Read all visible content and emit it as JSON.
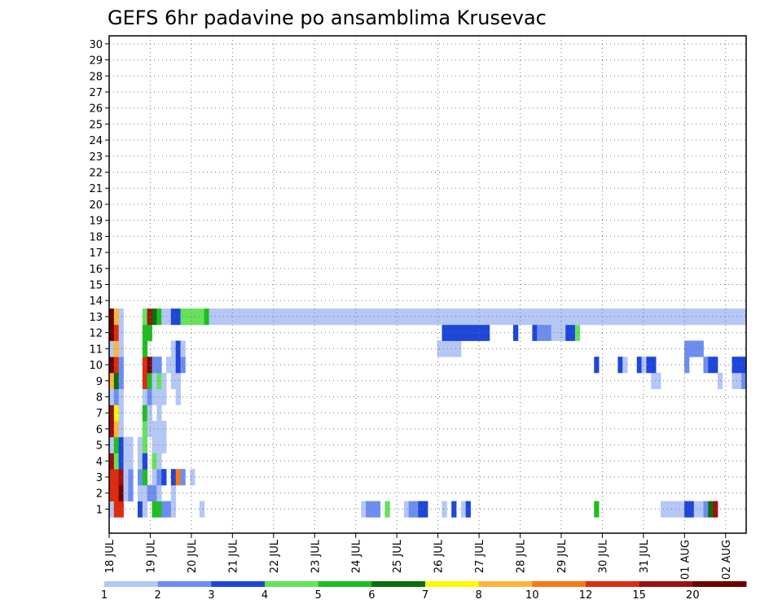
{
  "chart_data": {
    "type": "heatmap",
    "title": "GEFS 6hr padavine po ansamblima Krusevac",
    "xlabel": "",
    "ylabel": "",
    "x_tick_labels": [
      "18 JUL",
      "19 JUL",
      "20 JUL",
      "21 JUL",
      "22 JUL",
      "23 JUL",
      "24 JUL",
      "25 JUL",
      "26 JUL",
      "27 JUL",
      "28 JUL",
      "29 JUL",
      "30 JUL",
      "31 JUL",
      "01 AUG",
      "02 AUG"
    ],
    "y_tick_labels": [
      "1",
      "2",
      "3",
      "4",
      "5",
      "6",
      "7",
      "8",
      "9",
      "10",
      "11",
      "12",
      "13",
      "14",
      "15",
      "16",
      "17",
      "18",
      "19",
      "20",
      "21",
      "22",
      "23",
      "24",
      "25",
      "26",
      "27",
      "28",
      "29",
      "30"
    ],
    "grid": true,
    "colorbar": {
      "levels": [
        "1",
        "2",
        "3",
        "4",
        "5",
        "6",
        "7",
        "8",
        "10",
        "12",
        "15",
        "20"
      ],
      "colors": [
        "#b4c7f5",
        "#6d8ef0",
        "#1e46d8",
        "#64e25a",
        "#1ebe1e",
        "#0a6e0a",
        "#fffa00",
        "#ffb43c",
        "#fa7814",
        "#dc2d0f",
        "#a00f0f",
        "#6e0000"
      ]
    },
    "cells": [
      [
        0,
        1,
        1
      ],
      [
        1,
        1,
        10
      ],
      [
        2,
        1,
        10
      ],
      [
        6,
        1,
        3
      ],
      [
        7,
        1,
        1
      ],
      [
        9,
        1,
        5
      ],
      [
        10,
        1,
        5
      ],
      [
        11,
        1,
        2
      ],
      [
        12,
        1,
        2
      ],
      [
        13,
        1,
        1
      ],
      [
        19,
        1,
        1
      ],
      [
        53,
        1,
        1
      ],
      [
        54,
        1,
        2
      ],
      [
        55,
        1,
        2
      ],
      [
        56,
        1,
        2
      ],
      [
        58,
        1,
        4
      ],
      [
        62,
        1,
        1
      ],
      [
        63,
        1,
        2
      ],
      [
        64,
        1,
        2
      ],
      [
        65,
        1,
        3
      ],
      [
        66,
        1,
        3
      ],
      [
        70,
        1,
        1
      ],
      [
        72,
        1,
        3
      ],
      [
        74,
        1,
        1
      ],
      [
        75,
        1,
        3
      ],
      [
        102,
        1,
        5
      ],
      [
        116,
        1,
        1
      ],
      [
        117,
        1,
        1
      ],
      [
        118,
        1,
        1
      ],
      [
        119,
        1,
        1
      ],
      [
        120,
        1,
        1
      ],
      [
        121,
        1,
        3
      ],
      [
        122,
        1,
        3
      ],
      [
        123,
        1,
        1
      ],
      [
        124,
        1,
        1
      ],
      [
        125,
        1,
        2
      ],
      [
        126,
        1,
        6
      ],
      [
        127,
        1,
        11
      ],
      [
        0,
        2,
        10
      ],
      [
        1,
        2,
        10
      ],
      [
        2,
        2,
        12
      ],
      [
        3,
        2,
        1
      ],
      [
        4,
        2,
        2
      ],
      [
        6,
        2,
        1
      ],
      [
        7,
        2,
        1
      ],
      [
        8,
        2,
        2
      ],
      [
        9,
        2,
        2
      ],
      [
        10,
        2,
        1
      ],
      [
        13,
        2,
        1
      ],
      [
        0,
        3,
        10
      ],
      [
        1,
        3,
        10
      ],
      [
        2,
        3,
        11
      ],
      [
        3,
        3,
        1
      ],
      [
        4,
        3,
        2
      ],
      [
        6,
        3,
        2
      ],
      [
        7,
        3,
        5
      ],
      [
        9,
        3,
        1
      ],
      [
        10,
        3,
        2
      ],
      [
        11,
        3,
        3
      ],
      [
        13,
        3,
        3
      ],
      [
        14,
        3,
        9
      ],
      [
        15,
        3,
        2
      ],
      [
        17,
        3,
        1
      ],
      [
        0,
        4,
        11
      ],
      [
        1,
        4,
        4
      ],
      [
        2,
        4,
        3
      ],
      [
        3,
        4,
        1
      ],
      [
        4,
        4,
        1
      ],
      [
        6,
        4,
        1
      ],
      [
        7,
        4,
        3
      ],
      [
        9,
        4,
        4
      ],
      [
        10,
        4,
        1
      ],
      [
        0,
        5,
        1
      ],
      [
        1,
        5,
        5
      ],
      [
        2,
        5,
        3
      ],
      [
        3,
        5,
        1
      ],
      [
        4,
        5,
        1
      ],
      [
        6,
        5,
        1
      ],
      [
        7,
        5,
        4
      ],
      [
        9,
        5,
        1
      ],
      [
        10,
        5,
        1
      ],
      [
        11,
        5,
        1
      ],
      [
        0,
        6,
        11
      ],
      [
        1,
        6,
        8
      ],
      [
        2,
        6,
        1
      ],
      [
        7,
        6,
        4
      ],
      [
        8,
        6,
        1
      ],
      [
        9,
        6,
        1
      ],
      [
        10,
        6,
        1
      ],
      [
        11,
        6,
        1
      ],
      [
        0,
        7,
        11
      ],
      [
        1,
        7,
        7
      ],
      [
        2,
        7,
        1
      ],
      [
        7,
        7,
        5
      ],
      [
        8,
        7,
        1
      ],
      [
        10,
        7,
        1
      ],
      [
        0,
        8,
        1
      ],
      [
        1,
        8,
        2
      ],
      [
        2,
        8,
        1
      ],
      [
        7,
        8,
        1
      ],
      [
        8,
        8,
        2
      ],
      [
        9,
        8,
        1
      ],
      [
        10,
        8,
        1
      ],
      [
        11,
        8,
        1
      ],
      [
        14,
        8,
        1
      ],
      [
        0,
        9,
        8
      ],
      [
        1,
        9,
        6
      ],
      [
        2,
        9,
        2
      ],
      [
        7,
        9,
        10
      ],
      [
        8,
        9,
        5
      ],
      [
        9,
        9,
        1
      ],
      [
        10,
        9,
        4
      ],
      [
        11,
        9,
        1
      ],
      [
        13,
        9,
        1
      ],
      [
        14,
        9,
        1
      ],
      [
        114,
        9,
        1
      ],
      [
        115,
        9,
        1
      ],
      [
        128,
        9,
        1
      ],
      [
        131,
        9,
        1
      ],
      [
        132,
        9,
        1
      ],
      [
        133,
        9,
        2
      ],
      [
        0,
        10,
        12
      ],
      [
        1,
        10,
        10
      ],
      [
        2,
        10,
        2
      ],
      [
        7,
        10,
        10
      ],
      [
        8,
        10,
        12
      ],
      [
        9,
        10,
        2
      ],
      [
        10,
        10,
        2
      ],
      [
        12,
        10,
        1
      ],
      [
        13,
        10,
        1
      ],
      [
        14,
        10,
        3
      ],
      [
        15,
        10,
        2
      ],
      [
        102,
        10,
        3
      ],
      [
        107,
        10,
        3
      ],
      [
        108,
        10,
        1
      ],
      [
        111,
        10,
        3
      ],
      [
        112,
        10,
        1
      ],
      [
        113,
        10,
        3
      ],
      [
        114,
        10,
        3
      ],
      [
        121,
        10,
        2
      ],
      [
        125,
        10,
        2
      ],
      [
        126,
        10,
        3
      ],
      [
        127,
        10,
        3
      ],
      [
        131,
        10,
        3
      ],
      [
        132,
        10,
        3
      ],
      [
        133,
        10,
        3
      ],
      [
        0,
        11,
        1
      ],
      [
        1,
        11,
        8
      ],
      [
        2,
        11,
        1
      ],
      [
        7,
        11,
        5
      ],
      [
        13,
        11,
        1
      ],
      [
        14,
        11,
        3
      ],
      [
        15,
        11,
        1
      ],
      [
        69,
        11,
        1
      ],
      [
        70,
        11,
        1
      ],
      [
        71,
        11,
        1
      ],
      [
        72,
        11,
        1
      ],
      [
        73,
        11,
        1
      ],
      [
        121,
        11,
        2
      ],
      [
        122,
        11,
        2
      ],
      [
        123,
        11,
        2
      ],
      [
        124,
        11,
        2
      ],
      [
        0,
        12,
        12
      ],
      [
        1,
        12,
        10
      ],
      [
        2,
        12,
        1
      ],
      [
        7,
        12,
        5
      ],
      [
        8,
        12,
        5
      ],
      [
        70,
        12,
        3
      ],
      [
        71,
        12,
        3
      ],
      [
        72,
        12,
        3
      ],
      [
        73,
        12,
        3
      ],
      [
        74,
        12,
        3
      ],
      [
        75,
        12,
        3
      ],
      [
        76,
        12,
        3
      ],
      [
        77,
        12,
        3
      ],
      [
        78,
        12,
        3
      ],
      [
        79,
        12,
        3
      ],
      [
        85,
        12,
        3
      ],
      [
        89,
        12,
        3
      ],
      [
        90,
        12,
        2
      ],
      [
        91,
        12,
        2
      ],
      [
        92,
        12,
        2
      ],
      [
        93,
        12,
        1
      ],
      [
        94,
        12,
        1
      ],
      [
        95,
        12,
        1
      ],
      [
        96,
        12,
        3
      ],
      [
        97,
        12,
        3
      ],
      [
        98,
        12,
        4
      ],
      [
        0,
        13,
        12
      ],
      [
        1,
        13,
        8
      ],
      [
        2,
        13,
        1
      ],
      [
        7,
        13,
        4
      ],
      [
        8,
        13,
        11
      ],
      [
        9,
        13,
        6
      ],
      [
        10,
        13,
        5
      ],
      [
        11,
        13,
        1
      ],
      [
        12,
        13,
        1
      ],
      [
        13,
        13,
        3
      ],
      [
        14,
        13,
        3
      ],
      [
        15,
        13,
        4
      ],
      [
        16,
        13,
        4
      ],
      [
        17,
        13,
        4
      ],
      [
        18,
        13,
        4
      ],
      [
        19,
        13,
        4
      ],
      [
        20,
        13,
        5
      ],
      [
        21,
        13,
        1
      ],
      [
        22,
        13,
        1
      ],
      [
        23,
        13,
        1
      ],
      [
        24,
        13,
        1
      ],
      [
        25,
        13,
        1
      ],
      [
        26,
        13,
        1
      ],
      [
        27,
        13,
        1
      ],
      [
        28,
        13,
        1
      ],
      [
        29,
        13,
        1
      ],
      [
        30,
        13,
        1
      ],
      [
        31,
        13,
        1
      ],
      [
        32,
        13,
        1
      ],
      [
        33,
        13,
        1
      ],
      [
        34,
        13,
        1
      ],
      [
        35,
        13,
        1
      ],
      [
        36,
        13,
        1
      ],
      [
        37,
        13,
        1
      ],
      [
        38,
        13,
        1
      ],
      [
        39,
        13,
        1
      ],
      [
        40,
        13,
        1
      ],
      [
        41,
        13,
        1
      ],
      [
        42,
        13,
        1
      ],
      [
        43,
        13,
        1
      ],
      [
        44,
        13,
        1
      ],
      [
        45,
        13,
        1
      ],
      [
        46,
        13,
        1
      ],
      [
        47,
        13,
        1
      ],
      [
        48,
        13,
        1
      ],
      [
        49,
        13,
        1
      ],
      [
        50,
        13,
        1
      ],
      [
        51,
        13,
        1
      ],
      [
        52,
        13,
        1
      ],
      [
        53,
        13,
        1
      ],
      [
        54,
        13,
        1
      ],
      [
        55,
        13,
        1
      ],
      [
        56,
        13,
        1
      ],
      [
        57,
        13,
        1
      ],
      [
        58,
        13,
        1
      ],
      [
        59,
        13,
        1
      ],
      [
        60,
        13,
        1
      ],
      [
        61,
        13,
        1
      ],
      [
        62,
        13,
        1
      ],
      [
        63,
        13,
        1
      ],
      [
        64,
        13,
        1
      ],
      [
        65,
        13,
        1
      ],
      [
        66,
        13,
        1
      ],
      [
        67,
        13,
        1
      ],
      [
        68,
        13,
        1
      ],
      [
        69,
        13,
        1
      ],
      [
        70,
        13,
        1
      ],
      [
        71,
        13,
        1
      ],
      [
        72,
        13,
        1
      ],
      [
        73,
        13,
        1
      ],
      [
        74,
        13,
        1
      ],
      [
        75,
        13,
        1
      ],
      [
        76,
        13,
        1
      ],
      [
        77,
        13,
        1
      ],
      [
        78,
        13,
        1
      ],
      [
        79,
        13,
        1
      ],
      [
        80,
        13,
        1
      ],
      [
        81,
        13,
        1
      ],
      [
        82,
        13,
        1
      ],
      [
        83,
        13,
        1
      ],
      [
        84,
        13,
        1
      ],
      [
        85,
        13,
        1
      ],
      [
        86,
        13,
        1
      ],
      [
        87,
        13,
        1
      ],
      [
        88,
        13,
        1
      ],
      [
        89,
        13,
        1
      ],
      [
        90,
        13,
        1
      ],
      [
        91,
        13,
        1
      ],
      [
        92,
        13,
        1
      ],
      [
        93,
        13,
        1
      ],
      [
        94,
        13,
        1
      ],
      [
        95,
        13,
        1
      ],
      [
        96,
        13,
        1
      ],
      [
        97,
        13,
        1
      ],
      [
        98,
        13,
        1
      ],
      [
        99,
        13,
        1
      ],
      [
        100,
        13,
        1
      ],
      [
        101,
        13,
        1
      ],
      [
        102,
        13,
        1
      ],
      [
        103,
        13,
        1
      ],
      [
        104,
        13,
        1
      ],
      [
        105,
        13,
        1
      ],
      [
        106,
        13,
        1
      ],
      [
        107,
        13,
        1
      ],
      [
        108,
        13,
        1
      ],
      [
        109,
        13,
        1
      ],
      [
        110,
        13,
        1
      ],
      [
        111,
        13,
        1
      ],
      [
        112,
        13,
        1
      ],
      [
        113,
        13,
        1
      ],
      [
        114,
        13,
        1
      ],
      [
        115,
        13,
        1
      ],
      [
        116,
        13,
        1
      ],
      [
        117,
        13,
        1
      ],
      [
        118,
        13,
        1
      ],
      [
        119,
        13,
        1
      ],
      [
        120,
        13,
        1
      ],
      [
        121,
        13,
        1
      ],
      [
        122,
        13,
        1
      ],
      [
        123,
        13,
        1
      ],
      [
        124,
        13,
        1
      ],
      [
        125,
        13,
        1
      ],
      [
        126,
        13,
        1
      ],
      [
        127,
        13,
        1
      ],
      [
        128,
        13,
        1
      ],
      [
        129,
        13,
        1
      ],
      [
        130,
        13,
        1
      ],
      [
        131,
        13,
        1
      ],
      [
        132,
        13,
        1
      ],
      [
        133,
        13,
        1
      ]
    ]
  }
}
